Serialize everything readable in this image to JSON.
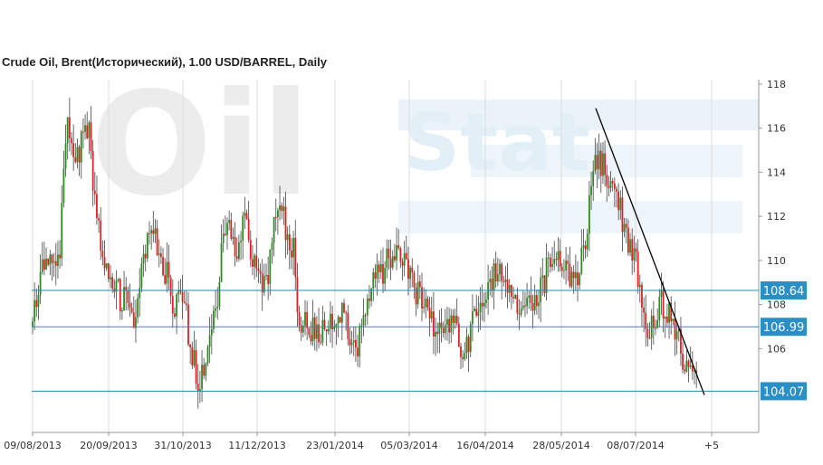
{
  "chart_data": {
    "type": "candlestick",
    "title": "Crude Oil, Brent(Исторический), 1.00 USD/BARREL, Daily",
    "watermark": [
      "Oil",
      "Stat"
    ],
    "x_tick_labels": [
      "09/08/2013",
      "20/09/2013",
      "31/10/2013",
      "11/12/2013",
      "23/01/2014",
      "05/03/2014",
      "16/04/2014",
      "28/05/2014",
      "08/07/2014",
      "+5"
    ],
    "y_ticks": [
      106,
      108,
      110,
      112,
      114,
      116,
      118
    ],
    "ylim": [
      102.2,
      118.2
    ],
    "grid": "vertical-lines",
    "colors": {
      "up": "#2e8b22",
      "down": "#e02020",
      "level_line": "#2a8ab0",
      "level_label_bg": "#2a8fc7",
      "trendline": "#000000"
    },
    "horizontal_levels": [
      {
        "value": 108.64,
        "label": "108.64"
      },
      {
        "value": 106.99,
        "label": "106.99"
      },
      {
        "value": 104.07,
        "label": "104.07"
      }
    ],
    "trendline": {
      "start": {
        "date": "2014-06-16",
        "price": 116.9
      },
      "end": {
        "date": "2014-08-15",
        "price": 103.9
      }
    },
    "candles_close_path": [
      [
        "2013-08-09",
        107.0
      ],
      [
        "2013-08-14",
        109.6
      ],
      [
        "2013-08-19",
        110.2
      ],
      [
        "2013-08-24",
        110.5
      ],
      [
        "2013-08-28",
        116.6
      ],
      [
        "2013-09-02",
        114.5
      ],
      [
        "2013-09-06",
        115.4
      ],
      [
        "2013-09-09",
        116.2
      ],
      [
        "2013-09-13",
        112.0
      ],
      [
        "2013-09-17",
        110.2
      ],
      [
        "2013-09-20",
        109.8
      ],
      [
        "2013-09-25",
        108.5
      ],
      [
        "2013-09-30",
        108.0
      ],
      [
        "2013-10-04",
        107.6
      ],
      [
        "2013-10-10",
        110.5
      ],
      [
        "2013-10-14",
        111.5
      ],
      [
        "2013-10-18",
        110.0
      ],
      [
        "2013-10-22",
        109.5
      ],
      [
        "2013-10-25",
        107.8
      ],
      [
        "2013-10-31",
        108.5
      ],
      [
        "2013-11-04",
        106.0
      ],
      [
        "2013-11-07",
        105.0
      ],
      [
        "2013-11-09",
        104.0
      ],
      [
        "2013-11-13",
        106.0
      ],
      [
        "2013-11-18",
        107.5
      ],
      [
        "2013-11-21",
        110.0
      ],
      [
        "2013-11-25",
        111.8
      ],
      [
        "2013-11-29",
        110.0
      ],
      [
        "2013-12-03",
        112.0
      ],
      [
        "2013-12-06",
        111.0
      ],
      [
        "2013-12-11",
        109.0
      ],
      [
        "2013-12-17",
        109.5
      ],
      [
        "2013-12-20",
        111.5
      ],
      [
        "2013-12-24",
        112.3
      ],
      [
        "2013-12-28",
        111.0
      ],
      [
        "2013-12-31",
        110.5
      ],
      [
        "2014-01-03",
        107.5
      ],
      [
        "2014-01-08",
        106.8
      ],
      [
        "2014-01-13",
        107.0
      ],
      [
        "2014-01-17",
        106.6
      ],
      [
        "2014-01-21",
        107.5
      ],
      [
        "2014-01-27",
        107.5
      ],
      [
        "2014-01-31",
        106.8
      ],
      [
        "2014-02-04",
        106.0
      ],
      [
        "2014-02-07",
        107.5
      ],
      [
        "2014-02-12",
        109.0
      ],
      [
        "2014-02-17",
        109.3
      ],
      [
        "2014-02-21",
        110.0
      ],
      [
        "2014-02-25",
        110.5
      ],
      [
        "2014-03-03",
        110.0
      ],
      [
        "2014-03-06",
        109.0
      ],
      [
        "2014-03-10",
        108.5
      ],
      [
        "2014-03-14",
        108.0
      ],
      [
        "2014-03-18",
        107.2
      ],
      [
        "2014-03-21",
        106.5
      ],
      [
        "2014-03-26",
        107.5
      ],
      [
        "2014-03-31",
        107.0
      ],
      [
        "2014-04-02",
        105.8
      ],
      [
        "2014-04-07",
        106.5
      ],
      [
        "2014-04-10",
        107.5
      ],
      [
        "2014-04-14",
        107.8
      ],
      [
        "2014-04-18",
        108.5
      ],
      [
        "2014-04-22",
        109.8
      ],
      [
        "2014-04-28",
        109.0
      ],
      [
        "2014-05-02",
        108.3
      ],
      [
        "2014-05-06",
        108.0
      ],
      [
        "2014-05-12",
        107.9
      ],
      [
        "2014-05-16",
        108.5
      ],
      [
        "2014-05-20",
        109.5
      ],
      [
        "2014-05-26",
        109.8
      ],
      [
        "2014-05-30",
        109.5
      ],
      [
        "2014-06-04",
        109.3
      ],
      [
        "2014-06-08",
        109.8
      ],
      [
        "2014-06-12",
        112.0
      ],
      [
        "2014-06-16",
        114.5
      ],
      [
        "2014-06-20",
        114.5
      ],
      [
        "2014-06-24",
        113.5
      ],
      [
        "2014-06-27",
        113.0
      ],
      [
        "2014-07-02",
        111.5
      ],
      [
        "2014-07-05",
        110.5
      ],
      [
        "2014-07-08",
        110.0
      ],
      [
        "2014-07-11",
        108.0
      ],
      [
        "2014-07-15",
        106.8
      ],
      [
        "2014-07-18",
        107.2
      ],
      [
        "2014-07-22",
        108.0
      ],
      [
        "2014-07-26",
        107.5
      ],
      [
        "2014-07-30",
        107.0
      ],
      [
        "2014-08-02",
        106.0
      ],
      [
        "2014-08-06",
        105.0
      ],
      [
        "2014-08-11",
        105.0
      ]
    ]
  }
}
